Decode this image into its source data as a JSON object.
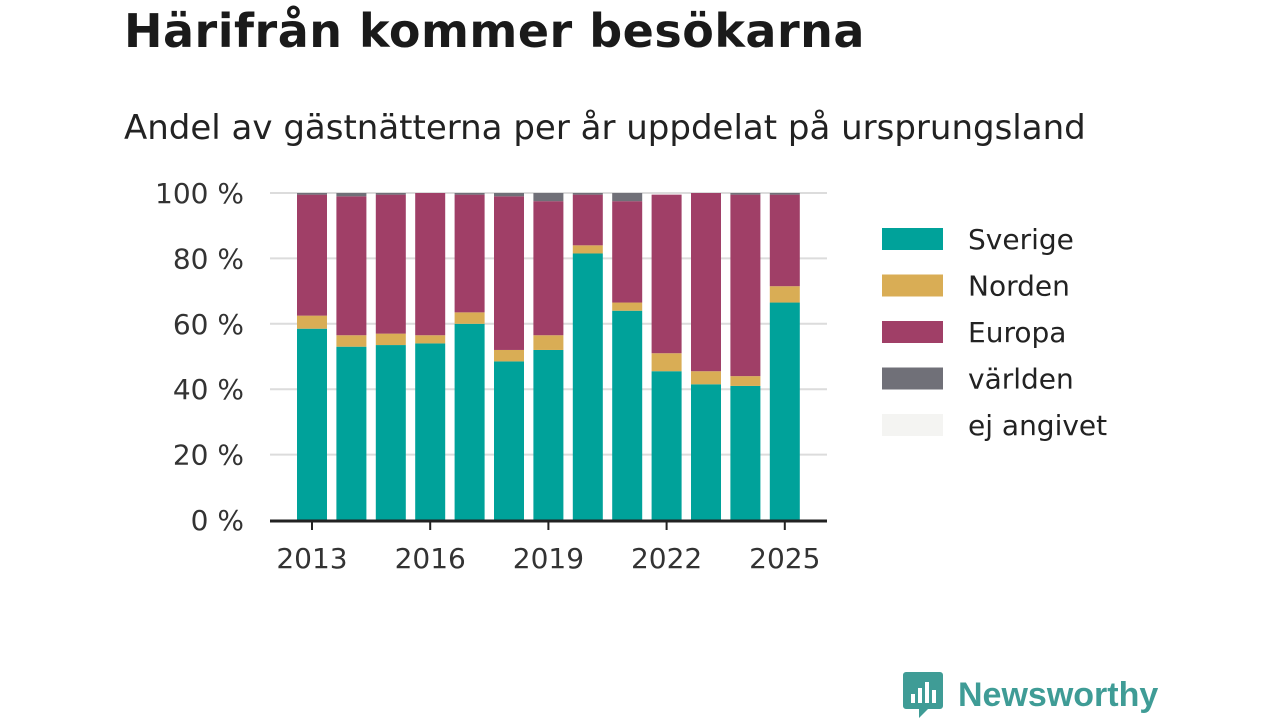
{
  "title": "Härifrån kommer besökarna",
  "subtitle": "Andel av gästnätterna per år uppdelat på ursprungsland",
  "brand": {
    "name": "Newsworthy",
    "color": "#3f9c96",
    "icon": "bar-chart-speech-bubble-icon"
  },
  "chart_data": {
    "type": "bar",
    "stacked": true,
    "categories": [
      "2013",
      "2014",
      "2015",
      "2016",
      "2017",
      "2018",
      "2019",
      "2020",
      "2021",
      "2022",
      "2023",
      "2024",
      "2025"
    ],
    "x_tick_labels": [
      "2013",
      "2016",
      "2019",
      "2022",
      "2025"
    ],
    "y_ticks": [
      "0 %",
      "20 %",
      "40 %",
      "60 %",
      "80 %",
      "100 %"
    ],
    "ylim": [
      0,
      100
    ],
    "grid": true,
    "legend_position": "right",
    "series": [
      {
        "name": "Sverige",
        "color": "#00a29a",
        "values": [
          58.5,
          53,
          53.5,
          54,
          60,
          48.5,
          52,
          81.5,
          64,
          45.5,
          41.5,
          41,
          66.5
        ]
      },
      {
        "name": "Norden",
        "color": "#d9ad55",
        "values": [
          4,
          3.5,
          3.5,
          2.5,
          3.5,
          3.5,
          4.5,
          2.5,
          2.5,
          5.5,
          4,
          3,
          5
        ]
      },
      {
        "name": "Europa",
        "color": "#a03f67",
        "values": [
          37,
          42.5,
          42.5,
          43.5,
          36,
          47,
          41,
          15.5,
          31,
          48.5,
          54.5,
          55.5,
          28
        ]
      },
      {
        "name": "världen",
        "color": "#707078",
        "values": [
          0.5,
          1,
          0.5,
          0,
          0.5,
          1,
          2.5,
          0.5,
          2.5,
          0,
          0,
          0.5,
          0.5
        ]
      },
      {
        "name": "ej angivet",
        "color": "#f4f4f2",
        "values": [
          0,
          0,
          0,
          0,
          0,
          0,
          0,
          0,
          0,
          0,
          0,
          0,
          0
        ]
      }
    ]
  }
}
